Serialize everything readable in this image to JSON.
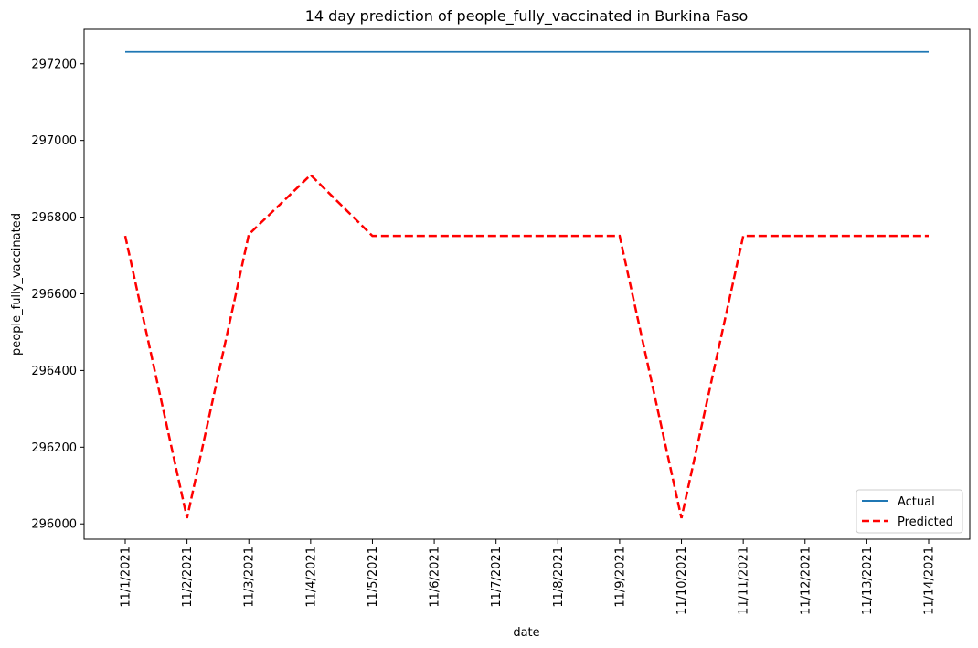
{
  "chart_data": {
    "type": "line",
    "title": "14 day prediction of people_fully_vaccinated in Burkina Faso",
    "xlabel": "date",
    "ylabel": "people_fully_vaccinated",
    "categories": [
      "11/1/2021",
      "11/2/2021",
      "11/3/2021",
      "11/4/2021",
      "11/5/2021",
      "11/6/2021",
      "11/7/2021",
      "11/8/2021",
      "11/9/2021",
      "11/10/2021",
      "11/11/2021",
      "11/12/2021",
      "11/13/2021",
      "11/14/2021"
    ],
    "ylim": [
      295960,
      297290
    ],
    "yticks": [
      296000,
      296200,
      296400,
      296600,
      296800,
      297000,
      297200
    ],
    "grid": false,
    "legend_position": "lower-right",
    "series": [
      {
        "name": "Actual",
        "color": "#1f77b4",
        "style": "solid",
        "values": [
          297231,
          297231,
          297231,
          297231,
          297231,
          297231,
          297231,
          297231,
          297231,
          297231,
          297231,
          297231,
          297231,
          297231
        ]
      },
      {
        "name": "Predicted",
        "color": "#ff0000",
        "style": "dashed",
        "values": [
          296751,
          296015,
          296755,
          296910,
          296751,
          296751,
          296751,
          296751,
          296751,
          296015,
          296751,
          296751,
          296751,
          296751
        ]
      }
    ]
  }
}
